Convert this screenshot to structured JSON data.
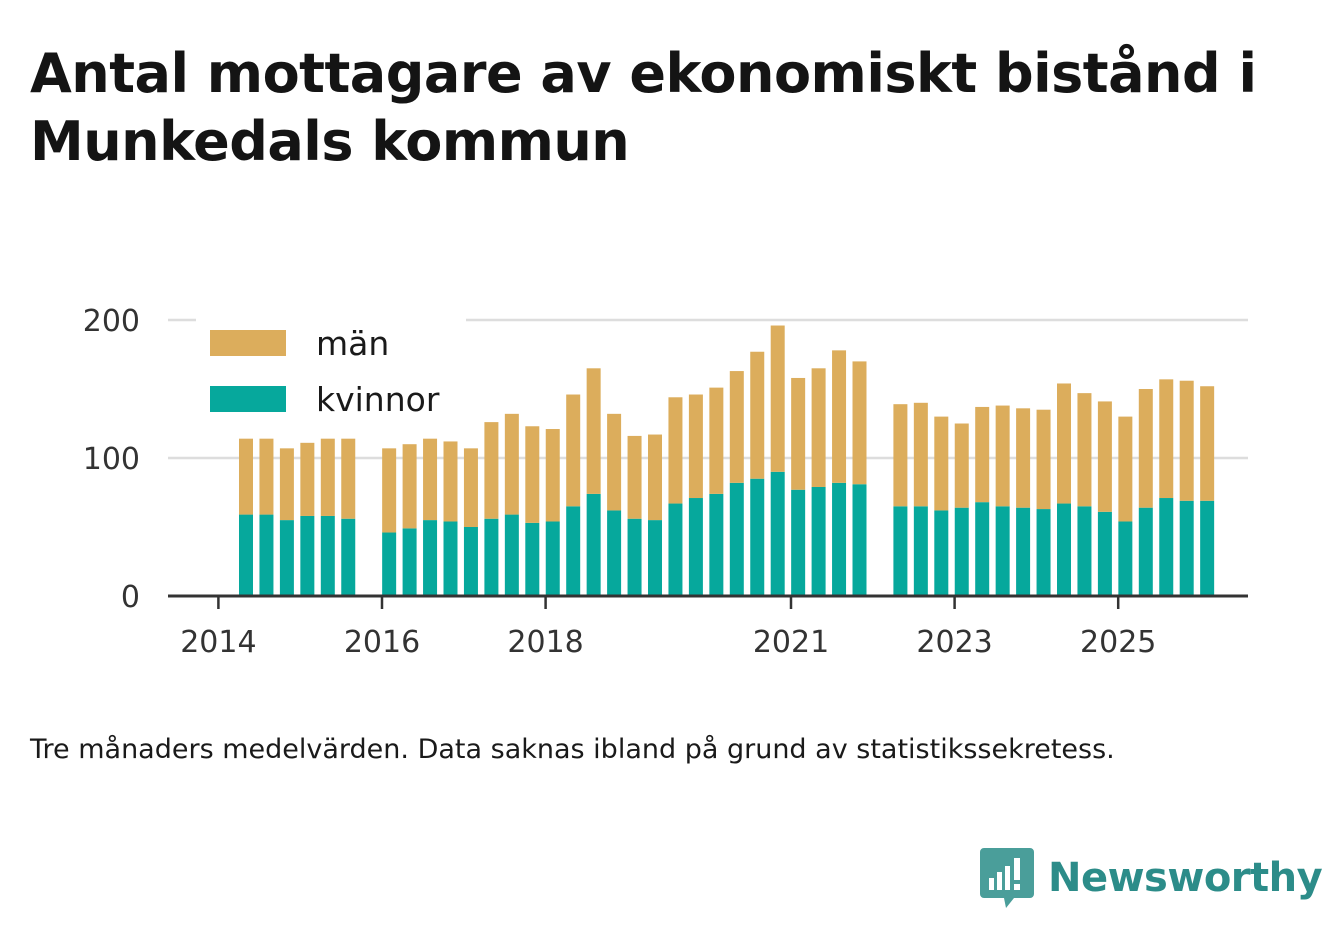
{
  "title": "Antal mottagare av ekonomiskt bistånd i Munkedals kommun",
  "note": "Tre månaders medelvärden. Data saknas ibland på grund av statistikssekretess.",
  "logo": {
    "name": "Newsworthy",
    "icon": "bar-chart-speech-bubble-icon"
  },
  "colors": {
    "men": "#dcad5c",
    "women": "#06a89c",
    "grid": "#dddddd",
    "axis": "#333333",
    "brand": "#2c8c89"
  },
  "chart_data": {
    "type": "bar",
    "stacked": true,
    "title": "Antal mottagare av ekonomiskt bistånd i Munkedals kommun",
    "xlabel": "",
    "ylabel": "",
    "ylim": [
      0,
      200
    ],
    "yticks": [
      0,
      100,
      200
    ],
    "xticks": [
      {
        "label": "2014",
        "at": 0
      },
      {
        "label": "2016",
        "at": 8
      },
      {
        "label": "2018",
        "at": 16
      },
      {
        "label": "2021",
        "at": 28
      },
      {
        "label": "2023",
        "at": 36
      },
      {
        "label": "2025",
        "at": 44
      }
    ],
    "legend": {
      "position": "top-left",
      "entries": [
        "män",
        "kvinnor"
      ]
    },
    "categories": [
      "2014Q2",
      "2014Q3",
      "2014Q4",
      "2015Q1",
      "2015Q2",
      "2015Q3",
      "2015Q4",
      "2016Q1",
      "2016Q2",
      "2016Q3",
      "2016Q4",
      "2017Q1",
      "2017Q2",
      "2017Q3",
      "2017Q4",
      "2018Q1",
      "2018Q2",
      "2018Q3",
      "2018Q4",
      "2019Q1",
      "2019Q2",
      "2019Q3",
      "2019Q4",
      "2020Q1",
      "2020Q2",
      "2020Q3",
      "2020Q4",
      "2021Q1",
      "2021Q2",
      "2021Q3",
      "2021Q4",
      "2022Q1",
      "2022Q2",
      "2022Q3",
      "2022Q4",
      "2023Q1",
      "2023Q2",
      "2023Q3",
      "2023Q4",
      "2024Q1",
      "2024Q2",
      "2024Q3",
      "2024Q4",
      "2025Q1",
      "2025Q2",
      "2025Q3",
      "2025Q4",
      "2026Q1"
    ],
    "series": [
      {
        "name": "kvinnor",
        "values": [
          59,
          59,
          55,
          58,
          58,
          56,
          null,
          46,
          49,
          55,
          54,
          50,
          56,
          59,
          53,
          54,
          65,
          74,
          62,
          56,
          55,
          67,
          71,
          74,
          82,
          85,
          90,
          77,
          79,
          82,
          81,
          null,
          65,
          65,
          62,
          64,
          68,
          65,
          64,
          63,
          67,
          65,
          61,
          54,
          64,
          71,
          69,
          69
        ]
      },
      {
        "name": "män",
        "values": [
          55,
          55,
          52,
          53,
          56,
          58,
          null,
          61,
          61,
          59,
          58,
          57,
          70,
          73,
          70,
          67,
          81,
          91,
          70,
          60,
          62,
          77,
          75,
          77,
          81,
          92,
          106,
          81,
          86,
          96,
          89,
          null,
          74,
          75,
          68,
          61,
          69,
          73,
          72,
          72,
          87,
          82,
          80,
          76,
          86,
          86,
          87,
          83
        ]
      }
    ],
    "totals_hint": [
      114,
      114,
      107,
      111,
      114,
      114,
      null,
      107,
      110,
      114,
      112,
      107,
      126,
      132,
      123,
      121,
      146,
      165,
      132,
      116,
      117,
      144,
      146,
      151,
      163,
      177,
      196,
      158,
      165,
      178,
      170,
      null,
      139,
      140,
      130,
      125,
      137,
      138,
      136,
      135,
      154,
      147,
      141,
      130,
      150,
      157,
      156,
      152
    ]
  }
}
